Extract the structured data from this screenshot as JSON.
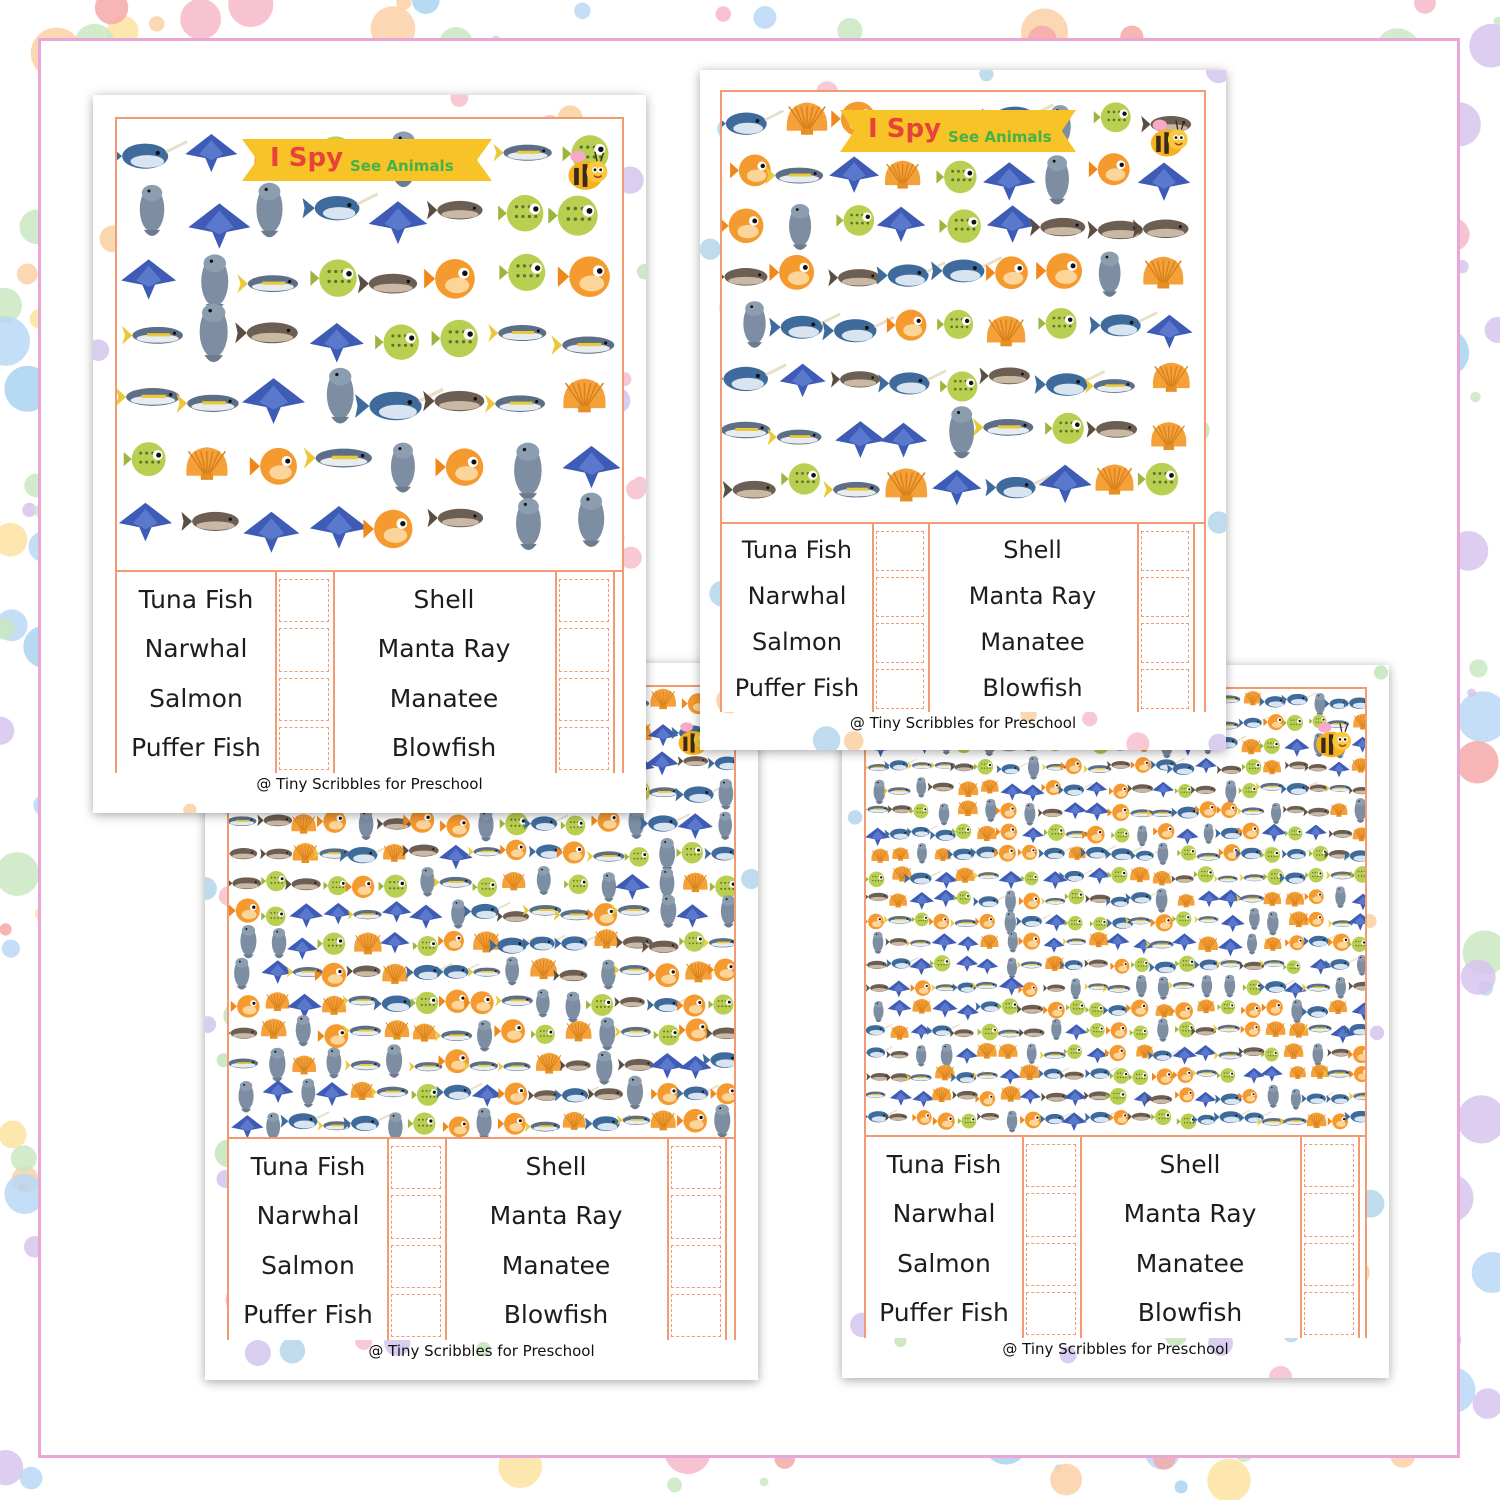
{
  "worksheet": {
    "title_i_spy": "I Spy",
    "title_sub": "See Animals",
    "credit": "@ Tiny Scribbles for Preschool",
    "items_left": [
      "Tuna Fish",
      "Narwhal",
      "Salmon",
      "Puffer Fish"
    ],
    "items_right": [
      "Shell",
      "Manta Ray",
      "Manatee",
      "Blowfish"
    ]
  },
  "icons": [
    "narwhal-icon",
    "manatee-icon",
    "puffer-fish-icon",
    "manta-ray-icon",
    "tuna-fish-icon",
    "shell-icon",
    "salmon-icon",
    "blowfish-icon",
    "bee-icon"
  ],
  "colors": {
    "frame": "#e9a6d6",
    "border": "#f29b73",
    "banner": "#f7c326",
    "subtitle": "#43b24a"
  }
}
